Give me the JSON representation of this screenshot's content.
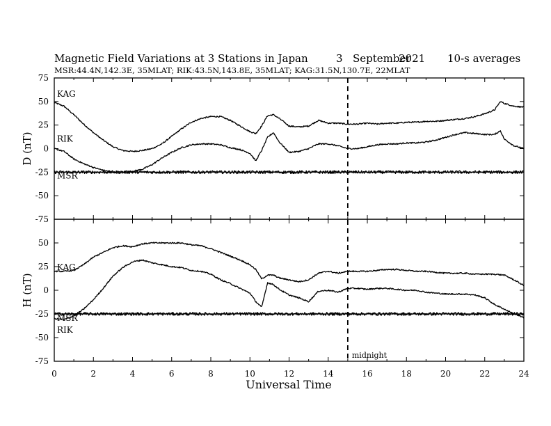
{
  "header": {
    "title": "Magnetic Field Variations at 3 Stations in Japan",
    "day": "3",
    "month": "September",
    "year": "2021",
    "averaging": "10-s averages",
    "stations_line": "MSR:44.4N,142.3E, 35MLAT;  RIK:43.5N,143.8E, 35MLAT;  KAG:31.5N,130.7E, 22MLAT"
  },
  "colors": {
    "line": "#000000",
    "background": "#ffffff"
  },
  "chart_data": [
    {
      "type": "line",
      "panel": "D",
      "ylabel": "D (nT)",
      "xlabel": "",
      "xlim": [
        0,
        24
      ],
      "ylim": [
        -75,
        75
      ],
      "yticks": [
        -75,
        -50,
        -25,
        0,
        25,
        50,
        75
      ],
      "baseline": -25,
      "series": [
        {
          "name": "KAG",
          "x": [
            0,
            0.5,
            1,
            1.5,
            2,
            2.5,
            3,
            3.5,
            4,
            4.5,
            5,
            5.5,
            6,
            6.5,
            7,
            7.5,
            8,
            8.5,
            9,
            9.5,
            10,
            10.3,
            10.6,
            10.9,
            11.2,
            11.5,
            12,
            12.5,
            13,
            13.5,
            14,
            14.5,
            15,
            15.5,
            16,
            16.5,
            17,
            17.5,
            18,
            18.5,
            19,
            19.5,
            20,
            20.5,
            21,
            21.5,
            22,
            22.5,
            22.8,
            23,
            23.5,
            24
          ],
          "y": [
            49,
            45,
            36,
            26,
            17,
            9,
            2,
            -2,
            -3,
            -2,
            0,
            5,
            13,
            21,
            28,
            32,
            34,
            34,
            30,
            24,
            18,
            16,
            24,
            35,
            36,
            32,
            24,
            23,
            24,
            30,
            27,
            27,
            26,
            26,
            27,
            26,
            27,
            27,
            28,
            28,
            29,
            29,
            30,
            31,
            32,
            34,
            37,
            41,
            50,
            48,
            45,
            44
          ]
        },
        {
          "name": "RIK",
          "x": [
            0,
            0.5,
            1,
            1.5,
            2,
            2.5,
            3,
            3.5,
            4,
            4.5,
            5,
            5.5,
            6,
            6.5,
            7,
            7.5,
            8,
            8.5,
            9,
            9.5,
            10,
            10.3,
            10.6,
            10.9,
            11.2,
            11.5,
            12,
            12.5,
            13,
            13.5,
            14,
            14.5,
            15,
            15.5,
            16,
            16.5,
            17,
            17.5,
            18,
            18.5,
            19,
            19.5,
            20,
            20.5,
            21,
            21.5,
            22,
            22.5,
            22.8,
            23,
            23.5,
            24
          ],
          "y": [
            0,
            -3,
            -11,
            -16,
            -20,
            -23,
            -25,
            -25,
            -24,
            -22,
            -17,
            -10,
            -4,
            1,
            4,
            5,
            5,
            4,
            1,
            -1,
            -5,
            -13,
            -2,
            12,
            17,
            7,
            -4,
            -3,
            0,
            5,
            5,
            3,
            0,
            0,
            2,
            4,
            5,
            5,
            6,
            6,
            7,
            9,
            12,
            15,
            17,
            16,
            15,
            15,
            19,
            10,
            3,
            0
          ]
        },
        {
          "name": "MSR",
          "x": [
            0,
            24
          ],
          "y": [
            -25,
            -25
          ]
        }
      ],
      "series_labels": [
        "KAG",
        "RIK",
        "MSR"
      ]
    },
    {
      "type": "line",
      "panel": "H",
      "ylabel": "H (nT)",
      "xlabel": "Universal Time",
      "xlim": [
        0,
        24
      ],
      "ylim": [
        -75,
        75
      ],
      "yticks": [
        -75,
        -50,
        -25,
        0,
        25,
        50,
        75
      ],
      "xticks": [
        0,
        2,
        4,
        6,
        8,
        10,
        12,
        14,
        16,
        18,
        20,
        22,
        24
      ],
      "baseline": -25,
      "series": [
        {
          "name": "KAG",
          "x": [
            0,
            0.5,
            1,
            1.5,
            2,
            2.5,
            3,
            3.5,
            4,
            4.5,
            5,
            5.5,
            6,
            6.5,
            7,
            7.5,
            8,
            8.5,
            9,
            9.5,
            10,
            10.3,
            10.6,
            10.9,
            11.2,
            11.5,
            12,
            12.5,
            13,
            13.5,
            14,
            14.5,
            15,
            15.5,
            16,
            16.5,
            17,
            17.5,
            18,
            18.5,
            19,
            19.5,
            20,
            20.5,
            21,
            21.5,
            22,
            22.5,
            23,
            23.5,
            24
          ],
          "y": [
            20,
            20,
            21,
            27,
            35,
            40,
            45,
            47,
            46,
            49,
            50,
            50,
            50,
            50,
            48,
            47,
            44,
            40,
            36,
            32,
            27,
            22,
            12,
            16,
            16,
            13,
            11,
            9,
            11,
            18,
            20,
            18,
            20,
            20,
            20,
            21,
            22,
            22,
            21,
            20,
            20,
            19,
            18,
            18,
            18,
            17,
            17,
            17,
            16,
            11,
            5
          ]
        },
        {
          "name": "RIK",
          "x": [
            0,
            0.5,
            1,
            1.5,
            2,
            2.5,
            3,
            3.5,
            4,
            4.5,
            5,
            5.5,
            6,
            6.5,
            7,
            7.5,
            8,
            8.5,
            9,
            9.5,
            10,
            10.3,
            10.6,
            10.9,
            11.2,
            11.5,
            12,
            12.5,
            13,
            13.5,
            14,
            14.5,
            15,
            15.5,
            16,
            16.5,
            17,
            17.5,
            18,
            18.5,
            19,
            19.5,
            20,
            20.5,
            21,
            21.5,
            22,
            22.5,
            23,
            23.5,
            24
          ],
          "y": [
            -30,
            -31,
            -27,
            -20,
            -10,
            2,
            15,
            24,
            30,
            32,
            29,
            27,
            25,
            24,
            21,
            20,
            17,
            11,
            7,
            2,
            -3,
            -12,
            -18,
            8,
            6,
            1,
            -5,
            -8,
            -12,
            -1,
            0,
            -2,
            2,
            2,
            1,
            2,
            2,
            1,
            0,
            0,
            -2,
            -3,
            -4,
            -4,
            -4,
            -5,
            -8,
            -15,
            -20,
            -25,
            -29
          ]
        },
        {
          "name": "MSR",
          "x": [
            0,
            24
          ],
          "y": [
            -25,
            -25
          ]
        }
      ],
      "series_labels": [
        "KAG",
        "MSR",
        "RIK"
      ]
    }
  ],
  "annotations": {
    "midnight_ut": 15,
    "midnight_label": "midnight"
  }
}
